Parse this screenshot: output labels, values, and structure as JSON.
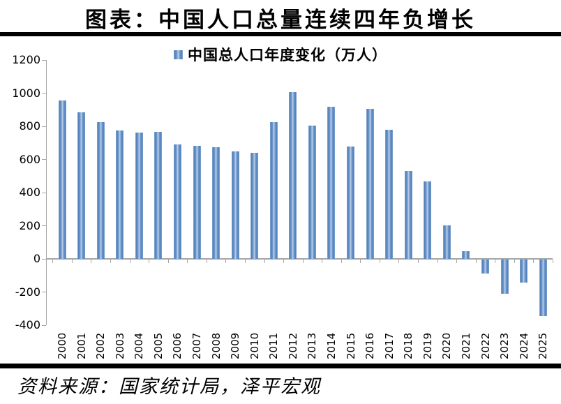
{
  "header": {
    "title": "图表：中国人口总量连续四年负增长"
  },
  "legend": {
    "label": "中国总人口年度变化（万人）"
  },
  "footer": {
    "source": "资料来源：国家统计局，泽平宏观"
  },
  "colors": {
    "bar_edge": "#4F81BD",
    "bar_mid": "#6A94C8",
    "bar_light": "#BCD1E9",
    "bar_outer": "#96B2D4",
    "axis": "#A6A6A6",
    "text": "#000000",
    "rule": "#000000"
  },
  "chart_data": {
    "type": "bar",
    "title": "图表：中国人口总量连续四年负增长",
    "legend": [
      "中国总人口年度变化（万人）"
    ],
    "legend_position": "top-center",
    "categories": [
      "2000",
      "2001",
      "2002",
      "2003",
      "2004",
      "2005",
      "2006",
      "2007",
      "2008",
      "2009",
      "2010",
      "2011",
      "2012",
      "2013",
      "2014",
      "2015",
      "2016",
      "2017",
      "2018",
      "2019",
      "2020",
      "2021",
      "2022",
      "2023",
      "2024",
      "2025"
    ],
    "values": [
      957,
      884,
      826,
      774,
      761,
      768,
      692,
      681,
      673,
      649,
      641,
      825,
      1006,
      804,
      920,
      680,
      906,
      779,
      530,
      467,
      204,
      48,
      -85,
      -208,
      -139,
      -339
    ],
    "unit": "万人",
    "xlabel": "",
    "ylabel": "",
    "ylim": [
      -400,
      1200
    ],
    "ytick_step": 200,
    "yticks": [
      1200,
      1000,
      800,
      600,
      400,
      200,
      0,
      -200,
      -400
    ],
    "grid": false
  }
}
